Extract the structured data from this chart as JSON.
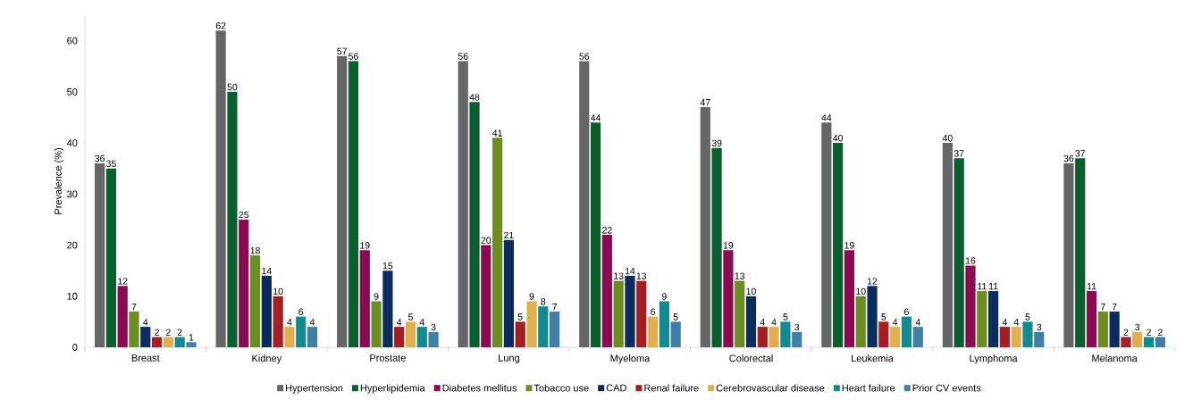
{
  "chart_data": {
    "type": "bar",
    "ylabel": "Prevalence (%)",
    "categories": [
      "Breast",
      "Kidney",
      "Prostate",
      "Lung",
      "Myeloma",
      "Colorectal",
      "Leukemia",
      "Lymphoma",
      "Melanoma"
    ],
    "series": [
      {
        "name": "Hypertension",
        "color": "#666666",
        "values": [
          36,
          62,
          57,
          56,
          56,
          47,
          44,
          40,
          36
        ]
      },
      {
        "name": "Hyperlipidemia",
        "color": "#0b5e2e",
        "values": [
          35,
          50,
          56,
          48,
          44,
          39,
          40,
          37,
          37
        ]
      },
      {
        "name": "Diabetes mellitus",
        "color": "#8b0b52",
        "values": [
          12,
          25,
          19,
          20,
          22,
          19,
          19,
          16,
          11
        ]
      },
      {
        "name": "Tobacco use",
        "color": "#6b8e23",
        "values": [
          7,
          18,
          9,
          41,
          13,
          13,
          10,
          11,
          7
        ]
      },
      {
        "name": "CAD",
        "color": "#0a2d5e",
        "values": [
          4,
          14,
          15,
          21,
          14,
          10,
          12,
          11,
          7
        ]
      },
      {
        "name": "Renal failure",
        "color": "#a31f24",
        "values": [
          2,
          10,
          4,
          5,
          13,
          4,
          5,
          4,
          2
        ]
      },
      {
        "name": "Cerebrovascular disease",
        "color": "#e0b050",
        "values": [
          2,
          4,
          5,
          9,
          6,
          4,
          4,
          4,
          3
        ]
      },
      {
        "name": "Heart failure",
        "color": "#138a8f",
        "values": [
          2,
          6,
          4,
          8,
          9,
          5,
          6,
          5,
          2
        ]
      },
      {
        "name": "Prior CV events",
        "color": "#3f7fa5",
        "values": [
          1,
          4,
          3,
          7,
          5,
          3,
          4,
          3,
          2
        ]
      }
    ],
    "ylim": [
      0,
      65
    ],
    "yticks": [
      0,
      10,
      20,
      30,
      40,
      50,
      60
    ],
    "grid": false,
    "legend": "bottom",
    "data_labels": true
  }
}
